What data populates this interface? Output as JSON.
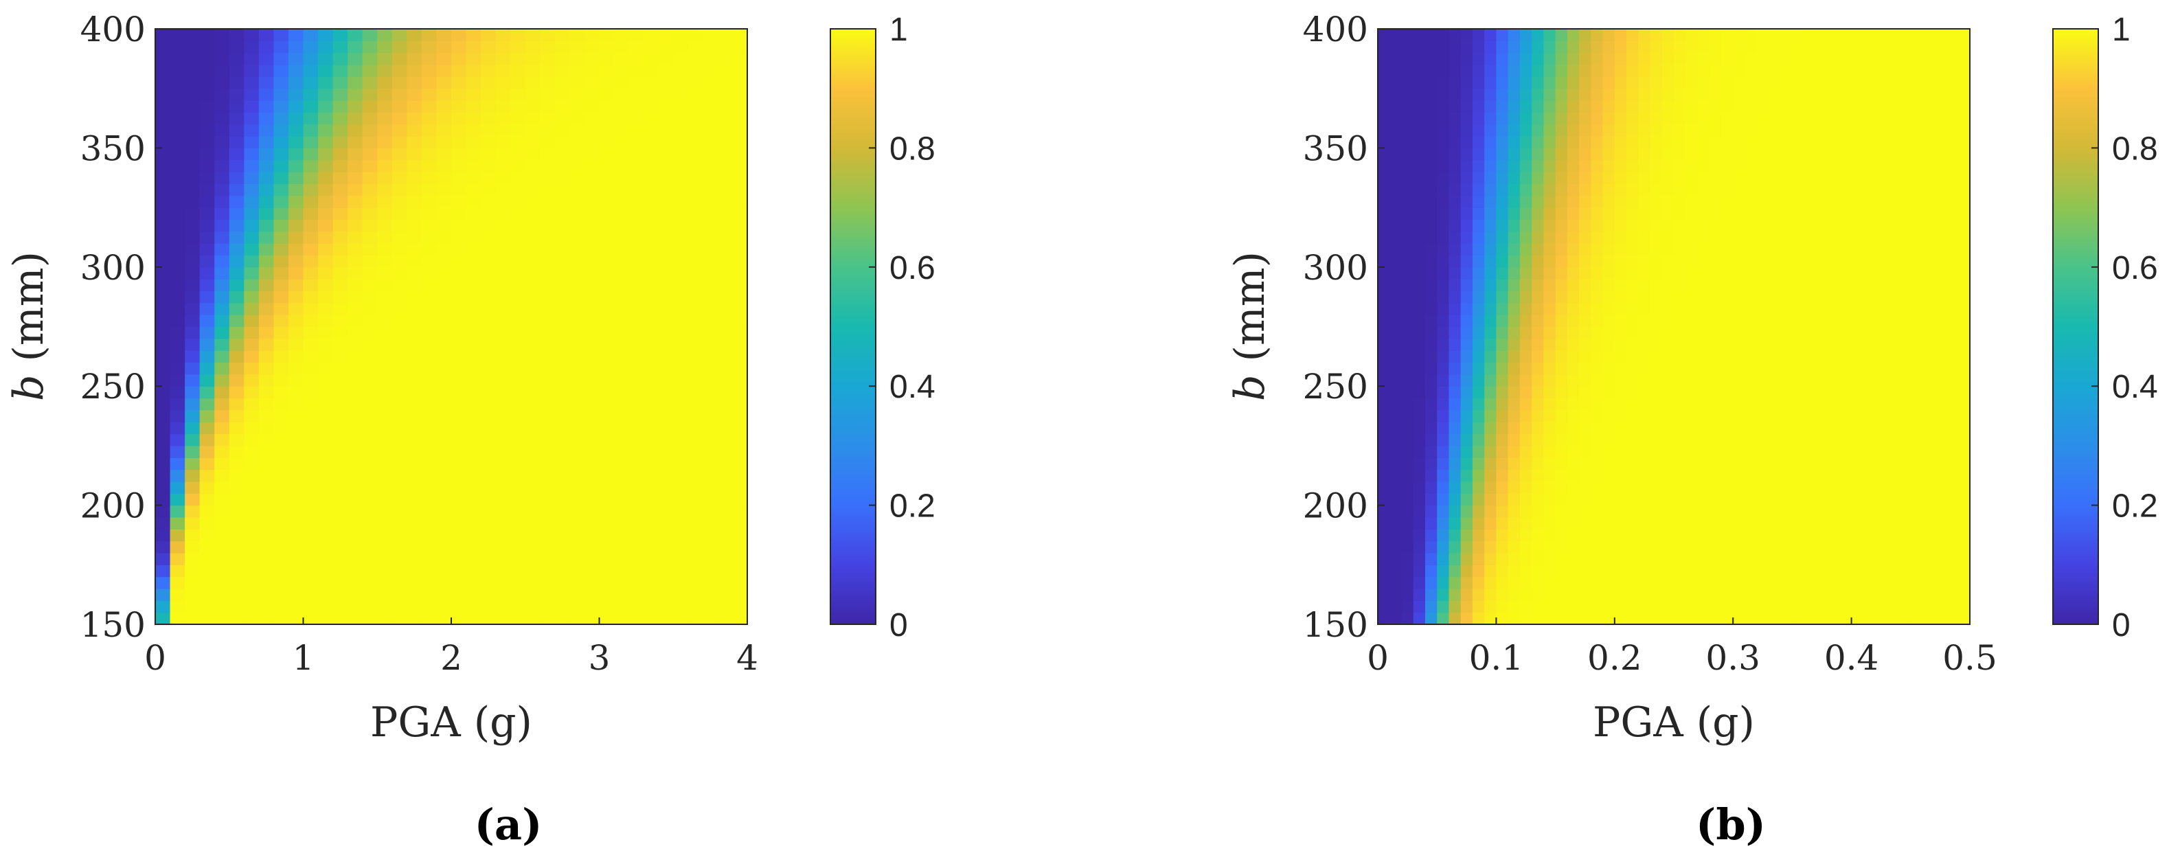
{
  "chart_data": [
    {
      "type": "heatmap",
      "panel_label": "(a)",
      "xlabel": "PGA (g)",
      "ylabel_italic": "b",
      "ylabel_rest": " (mm)",
      "xlim": [
        0,
        4
      ],
      "ylim": [
        150,
        400
      ],
      "x_ticks": [
        "0",
        "1",
        "2",
        "3",
        "4"
      ],
      "y_ticks": [
        "150",
        "200",
        "250",
        "300",
        "350",
        "400"
      ],
      "colorbar": {
        "range": [
          0,
          1
        ],
        "ticks": [
          "0",
          "0.2",
          "0.4",
          "0.6",
          "0.8",
          "1"
        ],
        "colormap": "parula"
      },
      "grid_size": {
        "nx": 40,
        "ny": 50
      },
      "model": {
        "x50_at_bmin": 0.05,
        "x50_at_bmax": 1.3,
        "exponent": 1.6,
        "spread": 0.38
      }
    },
    {
      "type": "heatmap",
      "panel_label": "(b)",
      "xlabel": "PGA (g)",
      "ylabel_italic": "b",
      "ylabel_rest": " (mm)",
      "xlim": [
        0,
        0.5
      ],
      "ylim": [
        150,
        400
      ],
      "x_ticks": [
        "0",
        "0.1",
        "0.2",
        "0.3",
        "0.4",
        "0.5"
      ],
      "y_ticks": [
        "150",
        "200",
        "250",
        "300",
        "350",
        "400"
      ],
      "colorbar": {
        "range": [
          0,
          1
        ],
        "ticks": [
          "0",
          "0.2",
          "0.4",
          "0.6",
          "0.8",
          "1"
        ],
        "colormap": "parula"
      },
      "grid_size": {
        "nx": 50,
        "ny": 50
      },
      "model": {
        "x50_at_bmin": 0.05,
        "x50_at_bmax": 0.14,
        "exponent": 1.0,
        "spread": 0.3
      }
    }
  ]
}
